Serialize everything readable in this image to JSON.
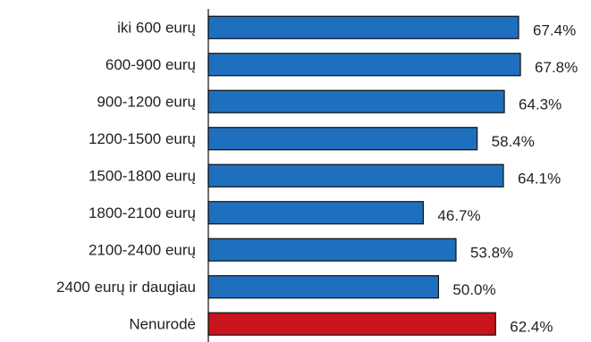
{
  "chart_data": {
    "type": "bar",
    "orientation": "horizontal",
    "categories": [
      "iki 600 eurų",
      "600-900 eurų",
      "900-1200 eurų",
      "1200-1500 eurų",
      "1500-1800 eurų",
      "1800-2100 eurų",
      "2100-2400 eurų",
      "2400 eurų ir daugiau",
      "Nenurodė"
    ],
    "values": [
      67.4,
      67.8,
      64.3,
      58.4,
      64.1,
      46.7,
      53.8,
      50.0,
      62.4
    ],
    "value_labels": [
      "67.4%",
      "67.8%",
      "64.3%",
      "58.4%",
      "64.1%",
      "46.7%",
      "53.8%",
      "50.0%",
      "62.4%"
    ],
    "unit": "%",
    "colors": [
      "#1f6fbf",
      "#1f6fbf",
      "#1f6fbf",
      "#1f6fbf",
      "#1f6fbf",
      "#1f6fbf",
      "#1f6fbf",
      "#1f6fbf",
      "#c8141c"
    ],
    "xlim": [
      0,
      80
    ],
    "grid": false,
    "legend": "none"
  }
}
